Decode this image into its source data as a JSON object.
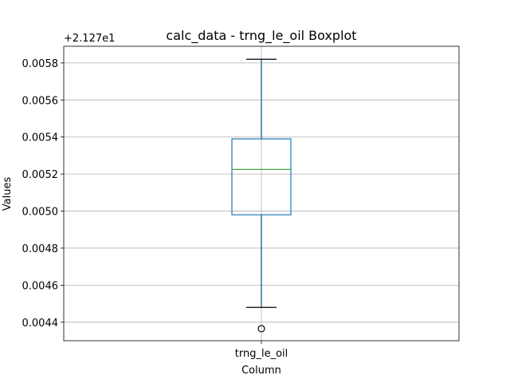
{
  "chart_data": {
    "type": "boxplot",
    "title": "calc_data - trng_le_oil Boxplot",
    "xlabel": "Column",
    "ylabel": "Values",
    "y_offset_label": "+2.127e1",
    "y_offset": 21.27,
    "categories": [
      "trng_le_oil"
    ],
    "boxes": [
      {
        "category": "trng_le_oil",
        "whisker_low": 0.00448,
        "q1": 0.00498,
        "median": 0.005225,
        "q3": 0.00539,
        "whisker_high": 0.00582,
        "outliers": [
          0.004365
        ]
      }
    ],
    "ylim": [
      0.0043,
      0.00589
    ],
    "yticks": [
      0.0044,
      0.0046,
      0.0048,
      0.005,
      0.0052,
      0.0054,
      0.0056,
      0.0058
    ],
    "ytick_labels": [
      "0.0044",
      "0.0046",
      "0.0048",
      "0.0050",
      "0.0052",
      "0.0054",
      "0.0056",
      "0.0058"
    ],
    "grid": true,
    "colors": {
      "box": "#1f77b4",
      "median": "#2ca02c",
      "whisker_cap": "#000000",
      "grid": "#b0b0b0"
    }
  }
}
